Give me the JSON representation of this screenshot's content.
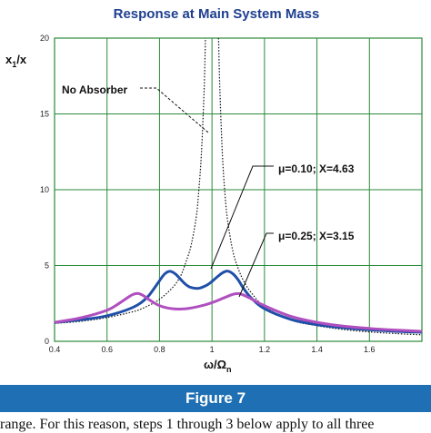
{
  "chart_data": {
    "type": "line",
    "title": "Response at Main System Mass",
    "xlabel": "ω/Ω_n",
    "ylabel": "x_1/x",
    "xlim": [
      0.4,
      1.8
    ],
    "ylim": [
      0,
      20
    ],
    "xticks": [
      0.4,
      0.6,
      0.8,
      1.0,
      1.2,
      1.4,
      1.6
    ],
    "xtick_labels": [
      "0.4",
      "0.6",
      "0.8",
      "1",
      "1.2",
      "1.4",
      "1.6"
    ],
    "yticks": [
      0,
      5,
      10,
      15,
      20
    ],
    "ytick_labels": [
      "0",
      "5",
      "10",
      "15",
      "20"
    ],
    "grid": true,
    "series": [
      {
        "name": "No Absorber",
        "color": "#111111",
        "style": "dotted",
        "x": [
          0.4,
          0.5,
          0.6,
          0.7,
          0.75,
          0.8,
          0.85,
          0.88,
          0.9,
          0.92,
          0.94,
          0.95,
          0.96,
          0.97,
          0.975,
          1.025,
          1.03,
          1.04,
          1.05,
          1.06,
          1.08,
          1.1,
          1.12,
          1.15,
          1.2,
          1.3,
          1.4,
          1.5,
          1.6,
          1.7,
          1.8
        ],
        "y": [
          1.18,
          1.32,
          1.57,
          1.96,
          2.29,
          2.77,
          3.55,
          4.3,
          5.2,
          6.3,
          8.2,
          10.0,
          12.5,
          16.6,
          20.0,
          20.0,
          16.6,
          12.2,
          9.6,
          7.9,
          5.9,
          4.8,
          4.0,
          3.2,
          2.3,
          1.4,
          1.03,
          0.78,
          0.62,
          0.51,
          0.43
        ]
      },
      {
        "name": "μ=0.10; X=4.63",
        "color": "#1f4fa8",
        "style": "solid",
        "x": [
          0.4,
          0.5,
          0.6,
          0.7,
          0.75,
          0.78,
          0.8,
          0.82,
          0.84,
          0.86,
          0.88,
          0.9,
          0.92,
          0.95,
          0.98,
          1.0,
          1.02,
          1.04,
          1.06,
          1.08,
          1.1,
          1.12,
          1.15,
          1.2,
          1.3,
          1.4,
          1.5,
          1.6,
          1.7,
          1.8
        ],
        "y": [
          1.25,
          1.42,
          1.68,
          2.25,
          2.85,
          3.5,
          4.0,
          4.45,
          4.62,
          4.45,
          4.1,
          3.75,
          3.55,
          3.5,
          3.7,
          3.95,
          4.25,
          4.52,
          4.63,
          4.45,
          4.05,
          3.5,
          2.85,
          2.15,
          1.45,
          1.1,
          0.9,
          0.76,
          0.66,
          0.6
        ]
      },
      {
        "name": "μ=0.25; X=3.15",
        "color": "#b04fbf",
        "style": "solid",
        "x": [
          0.4,
          0.5,
          0.6,
          0.65,
          0.68,
          0.7,
          0.72,
          0.74,
          0.76,
          0.8,
          0.85,
          0.9,
          0.95,
          1.0,
          1.05,
          1.08,
          1.1,
          1.12,
          1.15,
          1.2,
          1.3,
          1.4,
          1.5,
          1.6,
          1.7,
          1.8
        ],
        "y": [
          1.25,
          1.55,
          2.05,
          2.55,
          2.9,
          3.1,
          3.15,
          3.0,
          2.75,
          2.35,
          2.15,
          2.15,
          2.3,
          2.55,
          2.9,
          3.1,
          3.15,
          3.05,
          2.8,
          2.35,
          1.65,
          1.25,
          1.0,
          0.85,
          0.74,
          0.66
        ]
      }
    ],
    "annotations": [
      {
        "text": "No Absorber"
      },
      {
        "text": "μ=0.10; X=4.63"
      },
      {
        "text": "μ=0.25; X=3.15"
      }
    ]
  },
  "figure": {
    "caption": "Figure 7",
    "body_text": "range. For this reason, steps 1 through 3 below apply to all three"
  },
  "colors": {
    "title": "#1f3f8f",
    "caption_bar": "#1f6fb4",
    "grid": "#2a8a3a"
  }
}
